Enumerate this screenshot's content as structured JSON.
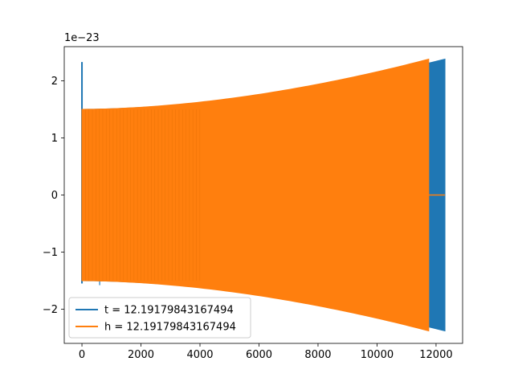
{
  "chart_data": {
    "type": "line",
    "title": "",
    "xlabel": "",
    "ylabel": "",
    "y_offset_label": "1e−23",
    "xlim": [
      -600,
      12900
    ],
    "ylim": [
      -2.6,
      2.6
    ],
    "x_ticks": [
      0,
      2000,
      4000,
      6000,
      8000,
      10000,
      12000
    ],
    "x_tick_labels": [
      "0",
      "2000",
      "4000",
      "6000",
      "8000",
      "10000",
      "12000"
    ],
    "y_ticks": [
      -2,
      -1,
      0,
      1,
      2
    ],
    "y_tick_labels": [
      "−2",
      "−1",
      "0",
      "1",
      "2"
    ],
    "grid": false,
    "legend_position": "lower-left",
    "series": [
      {
        "name": "t = 12.19179843167494",
        "color": "#1f77b4",
        "x_start": 0,
        "x_end": 12300,
        "amp_start": 1.5,
        "amp_end": 2.38,
        "initial_spike": 2.33,
        "note_envelope": "chirp oscillation, amplitude grows with x"
      },
      {
        "name": "h = 12.19179843167494",
        "color": "#ff7f0e",
        "x_start": 0,
        "x_end": 11750,
        "amp_start": 1.5,
        "amp_end": 2.38,
        "flat_after": 12300,
        "note_envelope": "chirp oscillation, drops to 0 after end"
      }
    ]
  }
}
